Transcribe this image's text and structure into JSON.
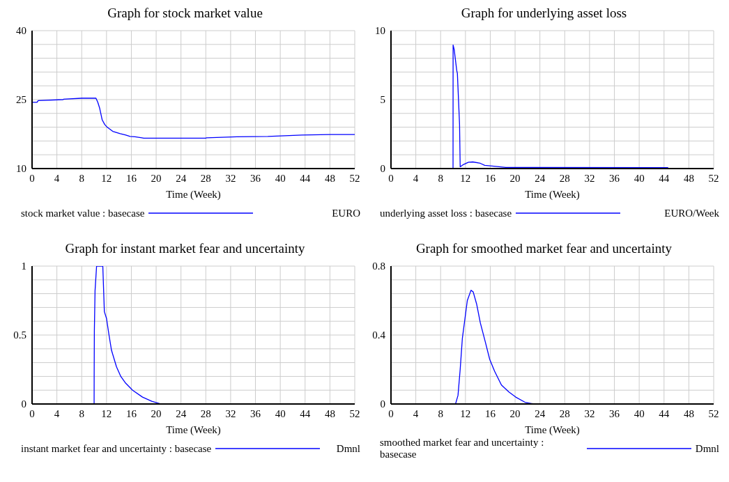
{
  "chart_data": [
    {
      "type": "line",
      "title": "Graph for stock market value",
      "xlabel": "Time (Week)",
      "xlim": [
        0,
        52
      ],
      "xticks": [
        0,
        4,
        8,
        12,
        16,
        20,
        24,
        28,
        32,
        36,
        40,
        44,
        48,
        52
      ],
      "ylim": [
        10,
        40
      ],
      "yticks": [
        10,
        {
          "value": 13,
          "label": null
        },
        {
          "value": 16,
          "label": null
        },
        {
          "value": 19,
          "label": null
        },
        {
          "value": 22,
          "label": null
        },
        25,
        {
          "value": 28,
          "label": null
        },
        {
          "value": 31,
          "label": null
        },
        {
          "value": 34,
          "label": null
        },
        {
          "value": 37,
          "label": null
        },
        40
      ],
      "grid": true,
      "legend": "bottom",
      "marker": "none",
      "line_style": "solid",
      "annotations": [
        "EURO"
      ],
      "series": [
        {
          "name": "stock market value : basecase",
          "color": "#0000ff",
          "x": [
            0,
            0.8,
            1,
            5,
            5.1,
            8,
            10.3,
            10.6,
            10.9,
            11.3,
            11.7,
            12.1,
            13,
            14.2,
            15.1,
            15.8,
            16.6,
            17.7,
            18,
            28,
            28.1,
            33,
            38,
            43.5,
            48,
            52
          ],
          "values": [
            24.4,
            24.4,
            24.8,
            25.0,
            25.1,
            25.3,
            25.3,
            24.4,
            23.1,
            20.6,
            19.6,
            19.0,
            18.1,
            17.6,
            17.3,
            17.0,
            16.9,
            16.7,
            16.6,
            16.6,
            16.7,
            16.9,
            17.0,
            17.3,
            17.4,
            17.4
          ]
        }
      ]
    },
    {
      "type": "line",
      "title": "Graph for underlying asset loss",
      "xlabel": "Time (Week)",
      "xlim": [
        0,
        52
      ],
      "xticks": [
        0,
        4,
        8,
        12,
        16,
        20,
        24,
        28,
        32,
        36,
        40,
        44,
        48,
        52
      ],
      "ylim": [
        0,
        10
      ],
      "yticks": [
        0,
        {
          "value": 1,
          "label": null
        },
        {
          "value": 2,
          "label": null
        },
        {
          "value": 3,
          "label": null
        },
        {
          "value": 4,
          "label": null
        },
        5,
        {
          "value": 6,
          "label": null
        },
        {
          "value": 7,
          "label": null
        },
        {
          "value": 8,
          "label": null
        },
        {
          "value": 9,
          "label": null
        },
        10
      ],
      "grid": true,
      "legend": "bottom",
      "marker": "none",
      "line_style": "solid",
      "annotations": [
        "EURO/Week"
      ],
      "series": [
        {
          "name": "underlying asset loss : basecase",
          "color": "#0000ff",
          "x": [
            0,
            10,
            10.01,
            10.2,
            10.3,
            10.6,
            10.7,
            11.05,
            11.15,
            11.7,
            12.5,
            13.2,
            14.4,
            15.1,
            16.6,
            18.5,
            44.6,
            44.7,
            52
          ],
          "values": [
            0,
            0,
            8.96,
            8.6,
            8.2,
            7.1,
            6.9,
            3.2,
            0.13,
            0.3,
            0.46,
            0.48,
            0.38,
            0.23,
            0.17,
            0.08,
            0.07,
            0,
            0
          ]
        }
      ]
    },
    {
      "type": "line",
      "title": "Graph for instant market fear and uncertainty",
      "xlabel": "Time (Week)",
      "xlim": [
        0,
        52
      ],
      "xticks": [
        0,
        4,
        8,
        12,
        16,
        20,
        24,
        28,
        32,
        36,
        40,
        44,
        48,
        52
      ],
      "ylim": [
        0,
        1
      ],
      "yticks": [
        0,
        {
          "value": 0.1,
          "label": null
        },
        {
          "value": 0.2,
          "label": null
        },
        {
          "value": 0.3,
          "label": null
        },
        {
          "value": 0.4,
          "label": null
        },
        0.5,
        {
          "value": 0.6,
          "label": null
        },
        {
          "value": 0.7,
          "label": null
        },
        {
          "value": 0.8,
          "label": null
        },
        {
          "value": 0.9,
          "label": null
        },
        1
      ],
      "grid": true,
      "legend": "bottom",
      "marker": "none",
      "line_style": "solid",
      "annotations": [
        "Dmnl"
      ],
      "series": [
        {
          "name": "instant market fear and uncertainty : basecase",
          "color": "#0000ff",
          "x": [
            0,
            10,
            10.01,
            10.04,
            10.15,
            10.4,
            11.4,
            11.65,
            12.0,
            12.4,
            12.8,
            13.6,
            14.3,
            15.1,
            16.2,
            17.8,
            19.3,
            20.8,
            52
          ],
          "values": [
            0,
            0,
            0.22,
            0.53,
            0.82,
            1,
            1,
            0.67,
            0.62,
            0.5,
            0.39,
            0.27,
            0.2,
            0.15,
            0.1,
            0.05,
            0.02,
            0,
            0
          ]
        }
      ]
    },
    {
      "type": "line",
      "title": "Graph for smoothed market fear and uncertainty",
      "xlabel": "Time (Week)",
      "xlim": [
        0,
        52
      ],
      "xticks": [
        0,
        4,
        8,
        12,
        16,
        20,
        24,
        28,
        32,
        36,
        40,
        44,
        48,
        52
      ],
      "ylim": [
        0,
        0.8
      ],
      "yticks": [
        0,
        {
          "value": 0.08,
          "label": null
        },
        {
          "value": 0.16,
          "label": null
        },
        {
          "value": 0.24,
          "label": null
        },
        {
          "value": 0.32,
          "label": null
        },
        0.4,
        {
          "value": 0.48,
          "label": null
        },
        {
          "value": 0.56,
          "label": null
        },
        {
          "value": 0.64,
          "label": null
        },
        {
          "value": 0.72,
          "label": null
        },
        0.8
      ],
      "grid": true,
      "legend": "bottom",
      "marker": "none",
      "line_style": "solid",
      "annotations": [
        "Dmnl"
      ],
      "series": [
        {
          "name": "smoothed market fear and uncertainty : basecase",
          "color": "#0000ff",
          "x": [
            0,
            10.4,
            10.8,
            11.15,
            11.5,
            11.9,
            12.3,
            12.9,
            13.25,
            13.8,
            14.4,
            15.2,
            15.9,
            16.7,
            17.8,
            19.0,
            20.1,
            21.6,
            23.0,
            52
          ],
          "values": [
            0,
            0,
            0.05,
            0.2,
            0.38,
            0.49,
            0.6,
            0.66,
            0.65,
            0.58,
            0.47,
            0.36,
            0.26,
            0.19,
            0.11,
            0.07,
            0.04,
            0.01,
            0,
            0
          ]
        }
      ]
    }
  ]
}
